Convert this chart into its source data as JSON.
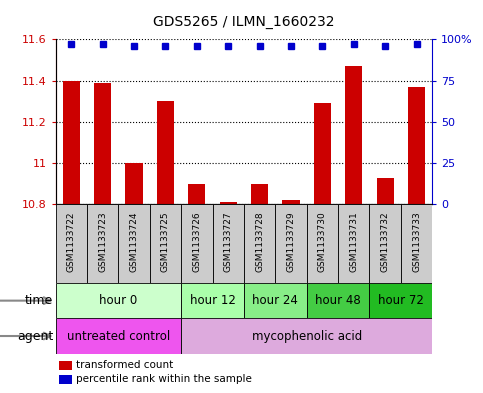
{
  "title": "GDS5265 / ILMN_1660232",
  "samples": [
    "GSM1133722",
    "GSM1133723",
    "GSM1133724",
    "GSM1133725",
    "GSM1133726",
    "GSM1133727",
    "GSM1133728",
    "GSM1133729",
    "GSM1133730",
    "GSM1133731",
    "GSM1133732",
    "GSM1133733"
  ],
  "transformed_count": [
    11.4,
    11.39,
    11.0,
    11.3,
    10.9,
    10.81,
    10.9,
    10.82,
    11.29,
    11.47,
    10.93,
    11.37
  ],
  "percentile_rank": [
    97,
    97,
    96,
    96,
    96,
    96,
    96,
    96,
    96,
    97,
    96,
    97
  ],
  "ylim_left": [
    10.8,
    11.6
  ],
  "ylim_right": [
    0,
    100
  ],
  "yticks_left": [
    10.8,
    11.0,
    11.2,
    11.4,
    11.6
  ],
  "yticks_right": [
    0,
    25,
    50,
    75,
    100
  ],
  "ytick_labels_left": [
    "10.8",
    "11",
    "11.2",
    "11.4",
    "11.6"
  ],
  "ytick_labels_right": [
    "0",
    "25",
    "50",
    "75",
    "100%"
  ],
  "bar_color": "#cc0000",
  "dot_color": "#0000cc",
  "time_groups": [
    {
      "label": "hour 0",
      "samples": [
        0,
        1,
        2,
        3
      ],
      "color": "#ccffcc"
    },
    {
      "label": "hour 12",
      "samples": [
        4,
        5
      ],
      "color": "#aaffaa"
    },
    {
      "label": "hour 24",
      "samples": [
        6,
        7
      ],
      "color": "#88ee88"
    },
    {
      "label": "hour 48",
      "samples": [
        8,
        9
      ],
      "color": "#44cc44"
    },
    {
      "label": "hour 72",
      "samples": [
        10,
        11
      ],
      "color": "#22bb22"
    }
  ],
  "agent_groups": [
    {
      "label": "untreated control",
      "samples": [
        0,
        1,
        2,
        3
      ],
      "color": "#ee55ee"
    },
    {
      "label": "mycophenolic acid",
      "samples": [
        4,
        5,
        6,
        7,
        8,
        9,
        10,
        11
      ],
      "color": "#ddaadd"
    }
  ],
  "sample_box_color": "#cccccc",
  "legend_bar_label": "transformed count",
  "legend_dot_label": "percentile rank within the sample",
  "time_label": "time",
  "agent_label": "agent",
  "bar_width": 0.55,
  "background_color": "#ffffff",
  "plot_bg_color": "#ffffff",
  "axis_color_left": "#cc0000",
  "axis_color_right": "#0000cc",
  "title_fontsize": 10,
  "tick_fontsize": 8,
  "label_fontsize": 9,
  "row_fontsize": 8.5
}
